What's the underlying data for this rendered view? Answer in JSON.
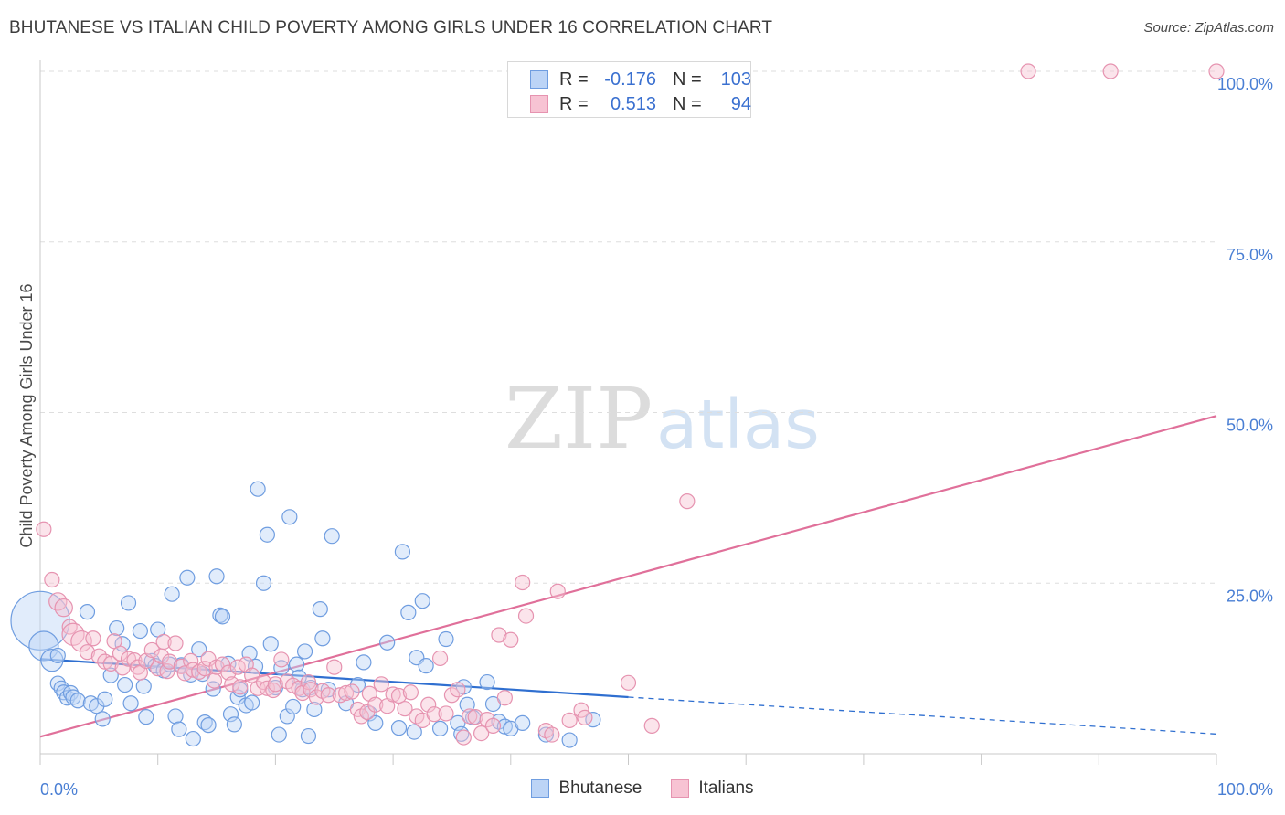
{
  "title": "BHUTANESE VS ITALIAN CHILD POVERTY AMONG GIRLS UNDER 16 CORRELATION CHART",
  "source": "Source: ZipAtlas.com",
  "watermark": {
    "zip": "ZIP",
    "atlas": "atlas"
  },
  "colors": {
    "bhutanese_fill": "#bcd4f6",
    "bhutanese_stroke": "#6f9de0",
    "bhutanese_line": "#2f6fd0",
    "italians_fill": "#f7c3d3",
    "italians_stroke": "#e693b0",
    "italians_line": "#e0709a",
    "tick_label": "#4a7fd4",
    "grid": "#dedede"
  },
  "stats": {
    "rows": [
      {
        "r_label": "R =",
        "r_value": "-0.176",
        "n_label": "N =",
        "n_value": "103"
      },
      {
        "r_label": "R =",
        "r_value": "0.513",
        "n_label": "N =",
        "n_value": "94"
      }
    ]
  },
  "legend": {
    "items": [
      "Bhutanese",
      "Italians"
    ]
  },
  "chart_data": {
    "type": "scatter",
    "title": "BHUTANESE VS ITALIAN CHILD POVERTY AMONG GIRLS UNDER 16 CORRELATION CHART",
    "xlabel": "",
    "ylabel": "Child Poverty Among Girls Under 16",
    "xlim": [
      0,
      100
    ],
    "ylim": [
      0,
      100
    ],
    "x_tick_labels": [
      "0.0%",
      "100.0%"
    ],
    "y_ticks": [
      25,
      50,
      75,
      100
    ],
    "y_tick_labels": [
      "25.0%",
      "50.0%",
      "75.0%",
      "100.0%"
    ],
    "grid": true,
    "legend_position": "bottom-center",
    "series": [
      {
        "name": "Bhutanese",
        "r": -0.176,
        "n": 103,
        "trend": {
          "x0": 0,
          "y0": 13.9,
          "x1": 50,
          "y1": 8.3,
          "dashed_to_x": 100,
          "dashed_to_y": 2.9
        },
        "points": [
          [
            0,
            19.5,
            4
          ],
          [
            0.3,
            15.8,
            2
          ],
          [
            1,
            13.7,
            1.5
          ],
          [
            1.5,
            14.4,
            1
          ],
          [
            1.5,
            10.3,
            1
          ],
          [
            1.8,
            9.6,
            1
          ],
          [
            2,
            9,
            1
          ],
          [
            2.3,
            8.2,
            1
          ],
          [
            2.6,
            8.9,
            1
          ],
          [
            2.8,
            8.3,
            1
          ],
          [
            3.2,
            7.8,
            1
          ],
          [
            4,
            20.8,
            1
          ],
          [
            4.3,
            7.4,
            1
          ],
          [
            4.8,
            7,
            1
          ],
          [
            5.3,
            5.1,
            1
          ],
          [
            5.5,
            8,
            1
          ],
          [
            6,
            11.5,
            1
          ],
          [
            6.5,
            18.4,
            1
          ],
          [
            7,
            16.1,
            1
          ],
          [
            7.2,
            10.1,
            1
          ],
          [
            7.5,
            22.1,
            1
          ],
          [
            7.7,
            7.4,
            1
          ],
          [
            8.5,
            18,
            1
          ],
          [
            8.8,
            9.9,
            1
          ],
          [
            9,
            5.4,
            1
          ],
          [
            9.5,
            13.6,
            1
          ],
          [
            9.8,
            12.9,
            1
          ],
          [
            10,
            18.2,
            1
          ],
          [
            10.5,
            12.2,
            1
          ],
          [
            11,
            13.1,
            1
          ],
          [
            11.2,
            23.4,
            1
          ],
          [
            11.5,
            5.5,
            1
          ],
          [
            11.8,
            3.6,
            1
          ],
          [
            12,
            13,
            1
          ],
          [
            12.5,
            25.8,
            1
          ],
          [
            12.8,
            11.6,
            1
          ],
          [
            13,
            2.2,
            1
          ],
          [
            13.5,
            15.3,
            1
          ],
          [
            13.8,
            11.7,
            1
          ],
          [
            14,
            4.6,
            1
          ],
          [
            14.3,
            4.2,
            1
          ],
          [
            14.7,
            9.5,
            1
          ],
          [
            15,
            26,
            1
          ],
          [
            15.3,
            20.3,
            1
          ],
          [
            15.5,
            20.1,
            1
          ],
          [
            16,
            13.2,
            1
          ],
          [
            16.2,
            5.8,
            1
          ],
          [
            16.5,
            4.3,
            1
          ],
          [
            16.8,
            8.3,
            1
          ],
          [
            17,
            9.4,
            1
          ],
          [
            17.5,
            7.1,
            1
          ],
          [
            17.8,
            14.7,
            1
          ],
          [
            18,
            7.5,
            1
          ],
          [
            18.3,
            12.8,
            1
          ],
          [
            18.5,
            38.8,
            1
          ],
          [
            19,
            25,
            1
          ],
          [
            19.3,
            32.1,
            1
          ],
          [
            19.6,
            16.1,
            1
          ],
          [
            20,
            9.7,
            1
          ],
          [
            20.3,
            2.8,
            1
          ],
          [
            20.5,
            12.6,
            1
          ],
          [
            21,
            5.5,
            1
          ],
          [
            21.2,
            34.7,
            1
          ],
          [
            21.5,
            6.9,
            1
          ],
          [
            21.8,
            13.1,
            1
          ],
          [
            22,
            11.2,
            1
          ],
          [
            22.3,
            9.4,
            1
          ],
          [
            22.5,
            15,
            1
          ],
          [
            22.8,
            2.6,
            1
          ],
          [
            23,
            9.7,
            1
          ],
          [
            23.3,
            6.5,
            1
          ],
          [
            23.8,
            21.2,
            1
          ],
          [
            24,
            16.9,
            1
          ],
          [
            24.5,
            9.4,
            1
          ],
          [
            24.8,
            31.9,
            1
          ],
          [
            26,
            7.4,
            1
          ],
          [
            27,
            10.1,
            1
          ],
          [
            27.5,
            13.4,
            1
          ],
          [
            28,
            5.9,
            1
          ],
          [
            28.5,
            4.5,
            1
          ],
          [
            29.5,
            16.3,
            1
          ],
          [
            30.5,
            3.8,
            1
          ],
          [
            30.8,
            29.6,
            1
          ],
          [
            31.3,
            20.7,
            1
          ],
          [
            31.8,
            3.2,
            1
          ],
          [
            32,
            14.1,
            1
          ],
          [
            32.5,
            22.4,
            1
          ],
          [
            32.8,
            12.9,
            1
          ],
          [
            34,
            3.7,
            1
          ],
          [
            34.5,
            16.8,
            1
          ],
          [
            35.5,
            4.5,
            1
          ],
          [
            35.8,
            2.9,
            1
          ],
          [
            36,
            9.8,
            1
          ],
          [
            36.3,
            7.2,
            1
          ],
          [
            36.8,
            5.3,
            1
          ],
          [
            38,
            10.5,
            1
          ],
          [
            38.5,
            7.3,
            1
          ],
          [
            39,
            4.7,
            1
          ],
          [
            39.5,
            4,
            1
          ],
          [
            40,
            3.7,
            1
          ],
          [
            41,
            4.5,
            1
          ],
          [
            43,
            2.8,
            1
          ],
          [
            45,
            2,
            1
          ],
          [
            47,
            5,
            1
          ]
        ]
      },
      {
        "name": "Italians",
        "r": 0.513,
        "n": 94,
        "trend": {
          "x0": 0,
          "y0": 2.5,
          "x1": 100,
          "y1": 49.5
        },
        "points": [
          [
            0.3,
            32.9,
            1
          ],
          [
            1,
            25.5,
            1
          ],
          [
            1.5,
            22.3,
            1.2
          ],
          [
            2,
            21.4,
            1.2
          ],
          [
            2.5,
            18.6,
            1
          ],
          [
            2.8,
            17.5,
            1.5
          ],
          [
            3.5,
            16.5,
            1.4
          ],
          [
            4,
            14.9,
            1
          ],
          [
            4.5,
            16.9,
            1
          ],
          [
            5,
            14.3,
            1
          ],
          [
            5.5,
            13.5,
            1
          ],
          [
            6,
            13.2,
            1
          ],
          [
            6.3,
            16.5,
            1
          ],
          [
            6.8,
            14.7,
            1
          ],
          [
            7,
            12.6,
            1
          ],
          [
            7.5,
            13.9,
            1
          ],
          [
            8,
            13.7,
            1
          ],
          [
            8.3,
            12.7,
            1
          ],
          [
            8.5,
            11.9,
            1
          ],
          [
            9,
            13.6,
            1
          ],
          [
            9.5,
            15.2,
            1
          ],
          [
            10,
            12.5,
            1
          ],
          [
            10.3,
            14.3,
            1
          ],
          [
            10.5,
            16.4,
            1
          ],
          [
            10.8,
            12.1,
            1
          ],
          [
            11,
            13.5,
            1
          ],
          [
            11.5,
            16.2,
            1
          ],
          [
            12,
            12.8,
            1
          ],
          [
            12.3,
            11.8,
            1
          ],
          [
            12.8,
            13.6,
            1
          ],
          [
            13,
            12.3,
            1
          ],
          [
            13.5,
            12,
            1
          ],
          [
            14,
            12.5,
            1
          ],
          [
            14.3,
            13.9,
            1
          ],
          [
            14.8,
            10.7,
            1
          ],
          [
            15,
            12.7,
            1
          ],
          [
            15.5,
            13.1,
            1
          ],
          [
            16,
            11.9,
            1
          ],
          [
            16.3,
            10.2,
            1
          ],
          [
            16.8,
            12.7,
            1
          ],
          [
            17,
            9.8,
            1
          ],
          [
            17.5,
            13.1,
            1
          ],
          [
            18,
            11.5,
            1
          ],
          [
            18.5,
            9.6,
            1
          ],
          [
            19,
            10.5,
            1
          ],
          [
            19.3,
            9.6,
            1
          ],
          [
            19.8,
            9.3,
            1
          ],
          [
            20,
            10.2,
            1
          ],
          [
            20.5,
            13.8,
            1
          ],
          [
            21,
            10.6,
            1
          ],
          [
            21.5,
            10,
            1
          ],
          [
            22,
            9.6,
            1
          ],
          [
            22.3,
            8.9,
            1
          ],
          [
            22.8,
            10.5,
            1
          ],
          [
            23,
            9.4,
            1
          ],
          [
            23.5,
            8.3,
            1
          ],
          [
            24,
            9.2,
            1
          ],
          [
            24.5,
            8.6,
            1
          ],
          [
            25,
            12.7,
            1
          ],
          [
            25.5,
            8.6,
            1
          ],
          [
            26,
            8.9,
            1
          ],
          [
            26.5,
            9.1,
            1
          ],
          [
            27,
            6.5,
            1
          ],
          [
            27.3,
            5.5,
            1
          ],
          [
            27.8,
            6.1,
            1
          ],
          [
            28,
            8.8,
            1
          ],
          [
            28.5,
            7.2,
            1
          ],
          [
            29,
            10.2,
            1
          ],
          [
            29.5,
            7,
            1
          ],
          [
            30,
            8.7,
            1
          ],
          [
            30.5,
            8.5,
            1
          ],
          [
            31,
            6.6,
            1
          ],
          [
            31.5,
            9,
            1
          ],
          [
            32,
            5.5,
            1
          ],
          [
            32.5,
            4.9,
            1
          ],
          [
            33,
            7.2,
            1
          ],
          [
            33.5,
            5.8,
            1
          ],
          [
            34,
            14,
            1
          ],
          [
            34.5,
            5.9,
            1
          ],
          [
            35,
            8.6,
            1
          ],
          [
            35.5,
            9.4,
            1
          ],
          [
            36,
            2.4,
            1
          ],
          [
            36.5,
            5.5,
            1
          ],
          [
            37,
            5.4,
            1
          ],
          [
            37.5,
            3,
            1
          ],
          [
            38,
            5,
            1
          ],
          [
            38.5,
            4.1,
            1
          ],
          [
            39,
            17.4,
            1
          ],
          [
            39.5,
            8.2,
            1
          ],
          [
            40,
            16.7,
            1
          ],
          [
            41,
            25.1,
            1
          ],
          [
            41.3,
            20.2,
            1
          ],
          [
            43,
            3.4,
            1
          ],
          [
            43.5,
            2.8,
            1
          ],
          [
            44,
            23.8,
            1
          ],
          [
            45,
            4.9,
            1
          ],
          [
            46,
            6.4,
            1
          ],
          [
            46.3,
            5.3,
            1
          ],
          [
            50,
            10.4,
            1
          ],
          [
            52,
            4.1,
            1
          ],
          [
            55,
            37,
            1
          ],
          [
            84,
            100,
            1
          ],
          [
            91,
            100,
            1
          ],
          [
            100,
            100,
            1
          ]
        ]
      }
    ]
  }
}
